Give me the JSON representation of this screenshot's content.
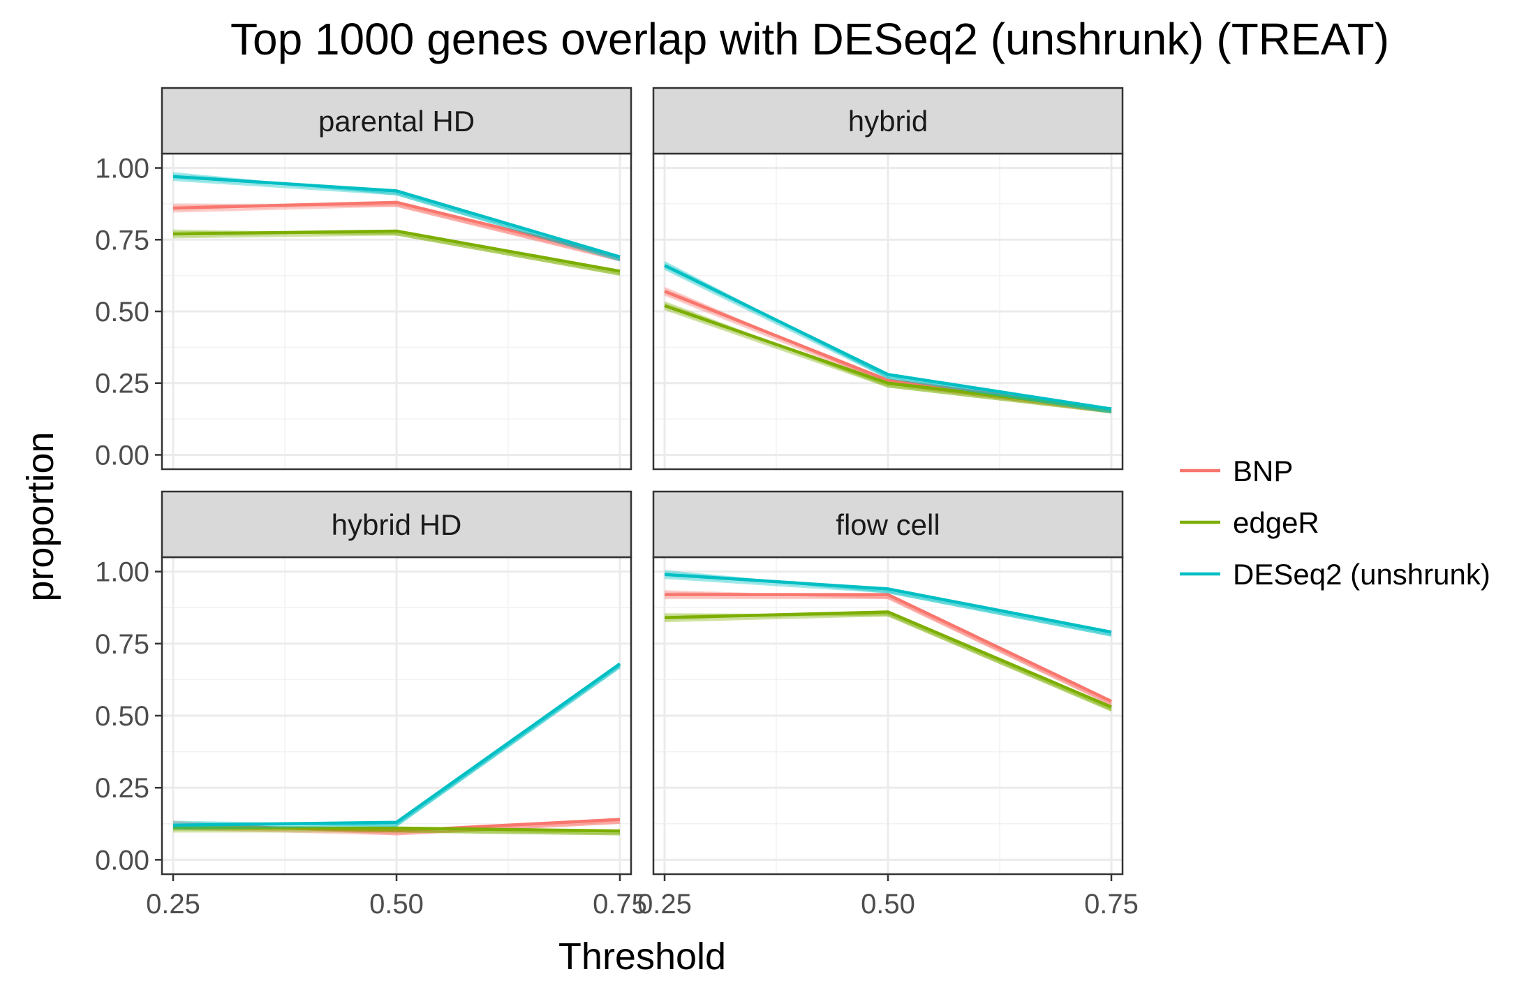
{
  "chart_data": {
    "type": "line",
    "title": "Top 1000 genes overlap with DESeq2 (unshrunk) (TREAT)",
    "xlabel": "Threshold",
    "ylabel": "proportion",
    "x": [
      0.25,
      0.5,
      0.75
    ],
    "x_ticks": [
      "0.25",
      "0.50",
      "0.75"
    ],
    "y_ticks": [
      "0.00",
      "0.25",
      "0.50",
      "0.75",
      "1.00"
    ],
    "xlim": [
      0.2375,
      0.7625
    ],
    "ylim": [
      -0.05,
      1.05
    ],
    "grid": true,
    "legend_position": "right",
    "legend": [
      {
        "name": "BNP",
        "color": "#F8766D"
      },
      {
        "name": "edgeR",
        "color": "#7CAE00"
      },
      {
        "name": "DESeq2 (unshrunk)",
        "color": "#00BFC4"
      }
    ],
    "panels": [
      {
        "strip": "parental HD",
        "series": [
          {
            "name": "BNP",
            "values": [
              0.86,
              0.88,
              0.69
            ]
          },
          {
            "name": "edgeR",
            "values": [
              0.77,
              0.78,
              0.64
            ]
          },
          {
            "name": "DESeq2 (unshrunk)",
            "values": [
              0.97,
              0.92,
              0.69
            ]
          }
        ]
      },
      {
        "strip": "hybrid",
        "series": [
          {
            "name": "BNP",
            "values": [
              0.57,
              0.26,
              0.16
            ]
          },
          {
            "name": "edgeR",
            "values": [
              0.52,
              0.25,
              0.16
            ]
          },
          {
            "name": "DESeq2 (unshrunk)",
            "values": [
              0.66,
              0.28,
              0.16
            ]
          }
        ]
      },
      {
        "strip": "hybrid HD",
        "series": [
          {
            "name": "BNP",
            "values": [
              0.12,
              0.1,
              0.14
            ]
          },
          {
            "name": "edgeR",
            "values": [
              0.11,
              0.11,
              0.1
            ]
          },
          {
            "name": "DESeq2 (unshrunk)",
            "values": [
              0.12,
              0.13,
              0.68
            ]
          }
        ]
      },
      {
        "strip": "flow cell",
        "series": [
          {
            "name": "BNP",
            "values": [
              0.92,
              0.92,
              0.55
            ]
          },
          {
            "name": "edgeR",
            "values": [
              0.84,
              0.86,
              0.53
            ]
          },
          {
            "name": "DESeq2 (unshrunk)",
            "values": [
              0.99,
              0.94,
              0.79
            ]
          }
        ]
      }
    ]
  }
}
